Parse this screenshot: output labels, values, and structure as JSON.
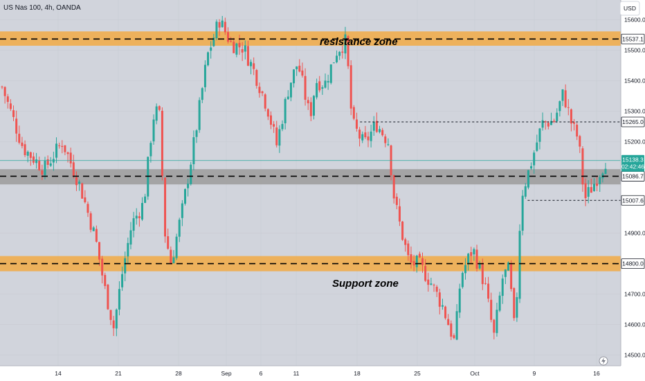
{
  "header": {
    "symbol": "US Nas 100, 4h, OANDA"
  },
  "currency_button": {
    "label": "USD"
  },
  "chart_data": {
    "type": "candlestick",
    "ylim": [
      14465,
      15665
    ],
    "y_ticks": [
      {
        "value": 15600,
        "label": "15600.0"
      },
      {
        "value": 15500,
        "label": "15500.0"
      },
      {
        "value": 15400,
        "label": "15400.0"
      },
      {
        "value": 15300,
        "label": "15300.0"
      },
      {
        "value": 15200,
        "label": "15200.0"
      },
      {
        "value": 14900,
        "label": "14900.0"
      },
      {
        "value": 14700,
        "label": "14700.0"
      },
      {
        "value": 14600,
        "label": "14600.0"
      },
      {
        "value": 14500,
        "label": "14500.0"
      }
    ],
    "x_ticks": [
      "14",
      "21",
      "28",
      "Sep",
      "6",
      "11",
      "18",
      "25",
      "Oct",
      "9",
      "16"
    ],
    "zones": [
      {
        "name": "resistance zone",
        "low": 15515,
        "high": 15562,
        "line": 15537.1,
        "color": "#f0ad4e"
      },
      {
        "name": "Support zone",
        "low": 14775,
        "high": 14825,
        "line": 14800.0,
        "color": "#f0ad4e"
      },
      {
        "name": "",
        "low": 15060,
        "high": 15110,
        "line": 15086.7,
        "color": "#9e9e9e"
      }
    ],
    "price_labels": [
      {
        "label": "15537.1",
        "value": 15537.1,
        "style": "outline"
      },
      {
        "label": "15265.0",
        "value": 15265.0,
        "style": "outline"
      },
      {
        "label": "15086.7",
        "value": 15086.7,
        "style": "outline"
      },
      {
        "label": "15007.6",
        "value": 15007.6,
        "style": "outline"
      },
      {
        "label": "14800.0",
        "value": 14800.0,
        "style": "outline"
      }
    ],
    "last_price": {
      "value": "15138.3",
      "countdown": "02:42:46",
      "color": "#26a69a"
    },
    "key_levels": [
      {
        "value": 15265.0,
        "style": "dotted",
        "from": 0.58
      },
      {
        "value": 15007.6,
        "style": "dotted",
        "from": 0.85
      }
    ],
    "series_colors": {
      "up": "#26a69a",
      "down": "#ef5350"
    },
    "close_path": [
      [
        0.0,
        15380
      ],
      [
        0.035,
        15180
      ],
      [
        0.07,
        15110
      ],
      [
        0.1,
        15200
      ],
      [
        0.13,
        15050
      ],
      [
        0.155,
        14880
      ],
      [
        0.17,
        14720
      ],
      [
        0.185,
        14590
      ],
      [
        0.2,
        14780
      ],
      [
        0.215,
        14930
      ],
      [
        0.235,
        15000
      ],
      [
        0.25,
        15280
      ],
      [
        0.26,
        15310
      ],
      [
        0.27,
        14900
      ],
      [
        0.28,
        14800
      ],
      [
        0.3,
        14990
      ],
      [
        0.32,
        15220
      ],
      [
        0.34,
        15480
      ],
      [
        0.36,
        15600
      ],
      [
        0.38,
        15520
      ],
      [
        0.4,
        15510
      ],
      [
        0.42,
        15420
      ],
      [
        0.44,
        15310
      ],
      [
        0.455,
        15190
      ],
      [
        0.475,
        15380
      ],
      [
        0.49,
        15460
      ],
      [
        0.51,
        15280
      ],
      [
        0.52,
        15400
      ],
      [
        0.535,
        15390
      ],
      [
        0.555,
        15500
      ],
      [
        0.57,
        15530
      ],
      [
        0.58,
        15260
      ],
      [
        0.6,
        15190
      ],
      [
        0.62,
        15260
      ],
      [
        0.64,
        15200
      ],
      [
        0.65,
        15010
      ],
      [
        0.66,
        14920
      ],
      [
        0.675,
        14800
      ],
      [
        0.69,
        14800
      ],
      [
        0.71,
        14740
      ],
      [
        0.73,
        14660
      ],
      [
        0.75,
        14540
      ],
      [
        0.76,
        14760
      ],
      [
        0.78,
        14850
      ],
      [
        0.8,
        14730
      ],
      [
        0.815,
        14560
      ],
      [
        0.83,
        14760
      ],
      [
        0.84,
        14780
      ],
      [
        0.85,
        14560
      ],
      [
        0.86,
        15020
      ],
      [
        0.875,
        15120
      ],
      [
        0.895,
        15260
      ],
      [
        0.915,
        15270
      ],
      [
        0.93,
        15360
      ],
      [
        0.945,
        15250
      ],
      [
        0.955,
        15210
      ],
      [
        0.965,
        15010
      ],
      [
        0.98,
        15060
      ],
      [
        1.0,
        15138
      ]
    ]
  }
}
